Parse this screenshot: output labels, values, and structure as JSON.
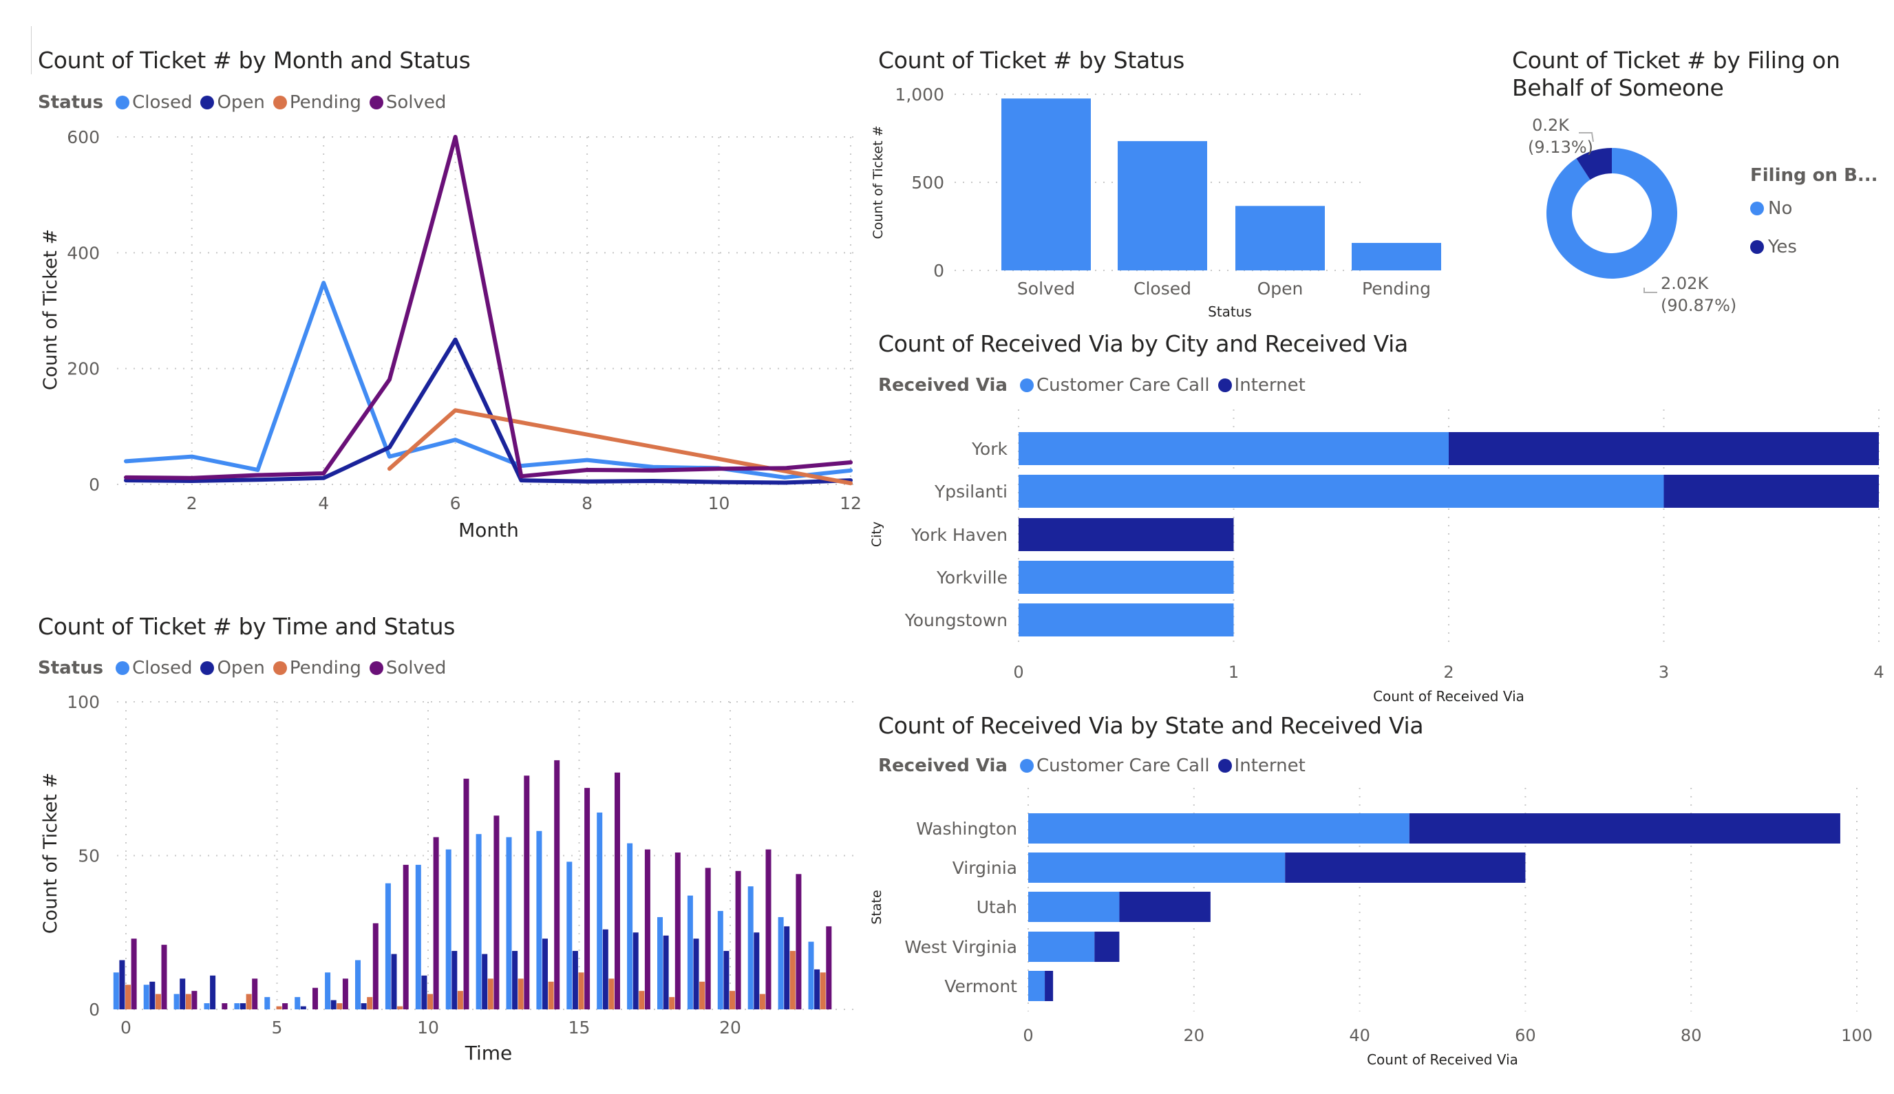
{
  "colors": {
    "closed": "#418BF3",
    "open": "#1A239A",
    "pending": "#D9744A",
    "solved": "#6A1078",
    "customer_care_call": "#418BF3",
    "internet": "#1A239A",
    "no": "#418BF3",
    "yes": "#1A239A"
  },
  "chart_data": [
    {
      "id": "month_status",
      "type": "line",
      "title": "Count of Ticket # by Month and Status",
      "legend_title": "Status",
      "legend_position": "top-left",
      "xlabel": "Month",
      "ylabel": "Count of Ticket #",
      "x": [
        1,
        2,
        3,
        4,
        5,
        6,
        7,
        8,
        9,
        10,
        11,
        12
      ],
      "xticks": [
        "2",
        "4",
        "6",
        "8",
        "10",
        "12"
      ],
      "xtick_values": [
        2,
        4,
        6,
        8,
        10,
        12
      ],
      "yticks": [
        "0",
        "200",
        "400",
        "600"
      ],
      "ytick_values": [
        0,
        200,
        400,
        600
      ],
      "xlim": [
        1,
        12
      ],
      "ylim": [
        0,
        600
      ],
      "grid": true,
      "series": [
        {
          "name": "Closed",
          "color_key": "closed",
          "values": [
            40,
            48,
            25,
            348,
            48,
            77,
            32,
            42,
            30,
            28,
            12,
            24
          ]
        },
        {
          "name": "Open",
          "color_key": "open",
          "values": [
            7,
            6,
            8,
            11,
            64,
            250,
            7,
            5,
            6,
            4,
            3,
            7
          ]
        },
        {
          "name": "Pending",
          "color_key": "pending",
          "values": [
            null,
            null,
            null,
            null,
            27,
            128,
            null,
            null,
            null,
            null,
            null,
            2
          ]
        },
        {
          "name": "Solved",
          "color_key": "solved",
          "values": [
            12,
            11,
            16,
            19,
            181,
            600,
            14,
            25,
            24,
            27,
            28,
            38
          ]
        }
      ]
    },
    {
      "id": "time_status",
      "type": "bar",
      "title": "Count of Ticket # by Time and Status",
      "legend_title": "Status",
      "legend_position": "top-left",
      "xlabel": "Time",
      "ylabel": "Count of Ticket #",
      "categories": [
        0,
        1,
        2,
        3,
        4,
        5,
        6,
        7,
        8,
        9,
        10,
        11,
        12,
        13,
        14,
        15,
        16,
        17,
        18,
        19,
        20,
        21,
        22,
        23
      ],
      "xticks": [
        "0",
        "5",
        "10",
        "15",
        "20"
      ],
      "xtick_values": [
        0,
        5,
        10,
        15,
        20
      ],
      "yticks": [
        "0",
        "50",
        "100"
      ],
      "ytick_values": [
        0,
        50,
        100
      ],
      "ylim": [
        0,
        100
      ],
      "grid": true,
      "series": [
        {
          "name": "Closed",
          "color_key": "closed",
          "values": [
            12,
            8,
            5,
            2,
            2,
            4,
            4,
            12,
            16,
            41,
            47,
            52,
            57,
            56,
            58,
            48,
            64,
            54,
            30,
            37,
            32,
            40,
            30,
            22
          ]
        },
        {
          "name": "Open",
          "color_key": "open",
          "values": [
            16,
            9,
            10,
            11,
            2,
            0,
            1,
            3,
            2,
            18,
            11,
            19,
            18,
            19,
            23,
            19,
            26,
            25,
            24,
            23,
            19,
            25,
            27,
            13
          ]
        },
        {
          "name": "Pending",
          "color_key": "pending",
          "values": [
            8,
            5,
            5,
            0,
            5,
            1,
            0,
            2,
            4,
            1,
            5,
            6,
            10,
            10,
            9,
            12,
            10,
            6,
            4,
            9,
            6,
            5,
            19,
            12
          ]
        },
        {
          "name": "Solved",
          "color_key": "solved",
          "values": [
            23,
            21,
            6,
            2,
            10,
            2,
            7,
            10,
            28,
            47,
            56,
            75,
            63,
            76,
            81,
            72,
            77,
            52,
            51,
            46,
            45,
            52,
            44,
            27
          ]
        }
      ]
    },
    {
      "id": "status",
      "type": "bar",
      "title": "Count of Ticket # by Status",
      "xlabel": "Status",
      "ylabel": "Count of Ticket #",
      "categories": [
        "Solved",
        "Closed",
        "Open",
        "Pending"
      ],
      "values": [
        976,
        734,
        366,
        156
      ],
      "yticks": [
        "0",
        "500",
        "1,000"
      ],
      "ytick_values": [
        0,
        500,
        1000
      ],
      "ylim": [
        0,
        1000
      ],
      "grid": true,
      "color_key": "closed"
    },
    {
      "id": "filing",
      "type": "pie",
      "donut": true,
      "title_line1": "Count of Ticket # by Filing on",
      "title_line2": "Behalf of Someone",
      "legend_title": "Filing on B...",
      "legend_position": "right",
      "slices": [
        {
          "name": "No",
          "color_key": "no",
          "value": 2020,
          "label_value": "2.02K",
          "label_pct": "(90.87%)",
          "percent": 90.87
        },
        {
          "name": "Yes",
          "color_key": "yes",
          "value": 200,
          "label_value": "0.2K",
          "label_pct": "(9.13%)",
          "percent": 9.13
        }
      ]
    },
    {
      "id": "city",
      "type": "bar",
      "orientation": "horizontal",
      "stacked": true,
      "title": "Count of Received Via by City and Received Via",
      "legend_title": "Received Via",
      "legend_position": "top-left",
      "xlabel": "Count of Received Via",
      "ylabel": "City",
      "categories": [
        "York",
        "Ypsilanti",
        "York Haven",
        "Yorkville",
        "Youngstown"
      ],
      "xticks": [
        "0",
        "1",
        "2",
        "3",
        "4"
      ],
      "xtick_values": [
        0,
        1,
        2,
        3,
        4
      ],
      "xlim": [
        0,
        4
      ],
      "grid": true,
      "series": [
        {
          "name": "Customer Care Call",
          "color_key": "customer_care_call",
          "values": [
            2,
            3,
            0,
            1,
            1
          ]
        },
        {
          "name": "Internet",
          "color_key": "internet",
          "values": [
            2,
            1,
            1,
            0,
            0
          ]
        }
      ]
    },
    {
      "id": "state",
      "type": "bar",
      "orientation": "horizontal",
      "stacked": true,
      "title": "Count of Received Via by State and Received Via",
      "legend_title": "Received Via",
      "legend_position": "top-left",
      "xlabel": "Count of Received Via",
      "ylabel": "State",
      "categories": [
        "Washington",
        "Virginia",
        "Utah",
        "West Virginia",
        "Vermont"
      ],
      "xticks": [
        "0",
        "20",
        "40",
        "60",
        "80",
        "100"
      ],
      "xtick_values": [
        0,
        20,
        40,
        60,
        80,
        100
      ],
      "xlim": [
        0,
        100
      ],
      "grid": true,
      "series": [
        {
          "name": "Customer Care Call",
          "color_key": "customer_care_call",
          "values": [
            46,
            31,
            11,
            8,
            2
          ]
        },
        {
          "name": "Internet",
          "color_key": "internet",
          "values": [
            52,
            29,
            11,
            3,
            1
          ]
        }
      ]
    }
  ]
}
